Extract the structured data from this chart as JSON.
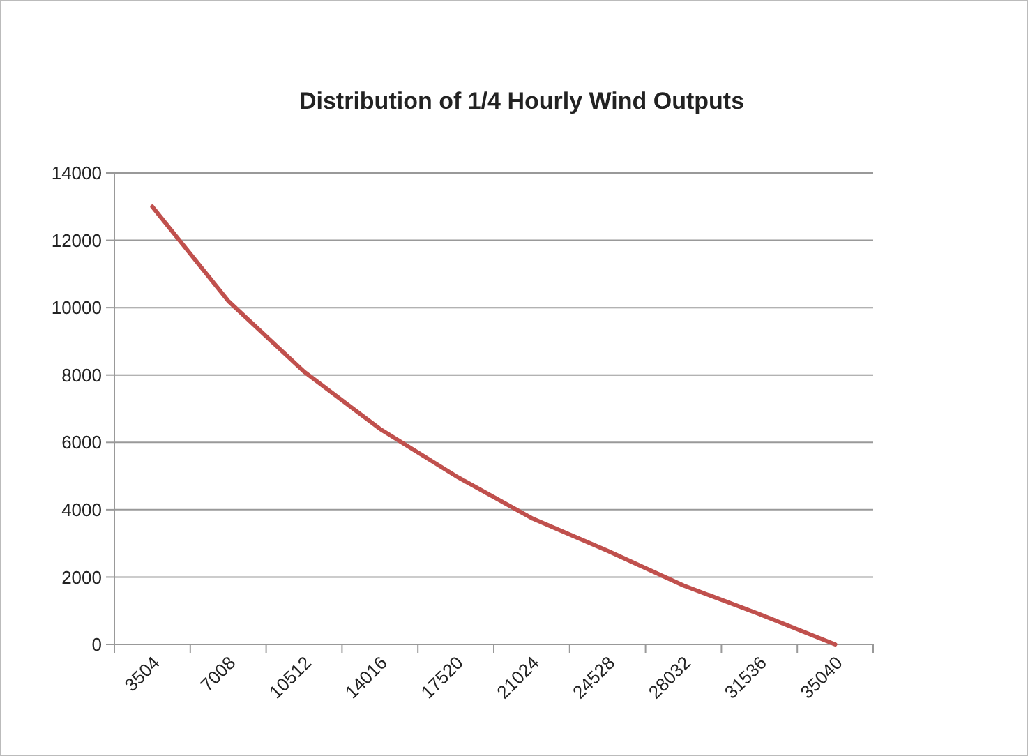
{
  "chart_data": {
    "type": "line",
    "title": "Distribution of 1/4 Hourly Wind Outputs",
    "categories": [
      "3504",
      "7008",
      "10512",
      "14016",
      "17520",
      "21024",
      "24528",
      "28032",
      "31536",
      "35040"
    ],
    "series": [
      {
        "color": "#c0504d",
        "values": [
          13000,
          10200,
          8100,
          6400,
          5000,
          3750,
          2780,
          1750,
          900,
          0
        ]
      }
    ],
    "ylim": [
      0,
      14000
    ],
    "yticks": [
      0,
      2000,
      4000,
      6000,
      8000,
      10000,
      12000,
      14000
    ],
    "grid": "y",
    "marker": "none"
  }
}
